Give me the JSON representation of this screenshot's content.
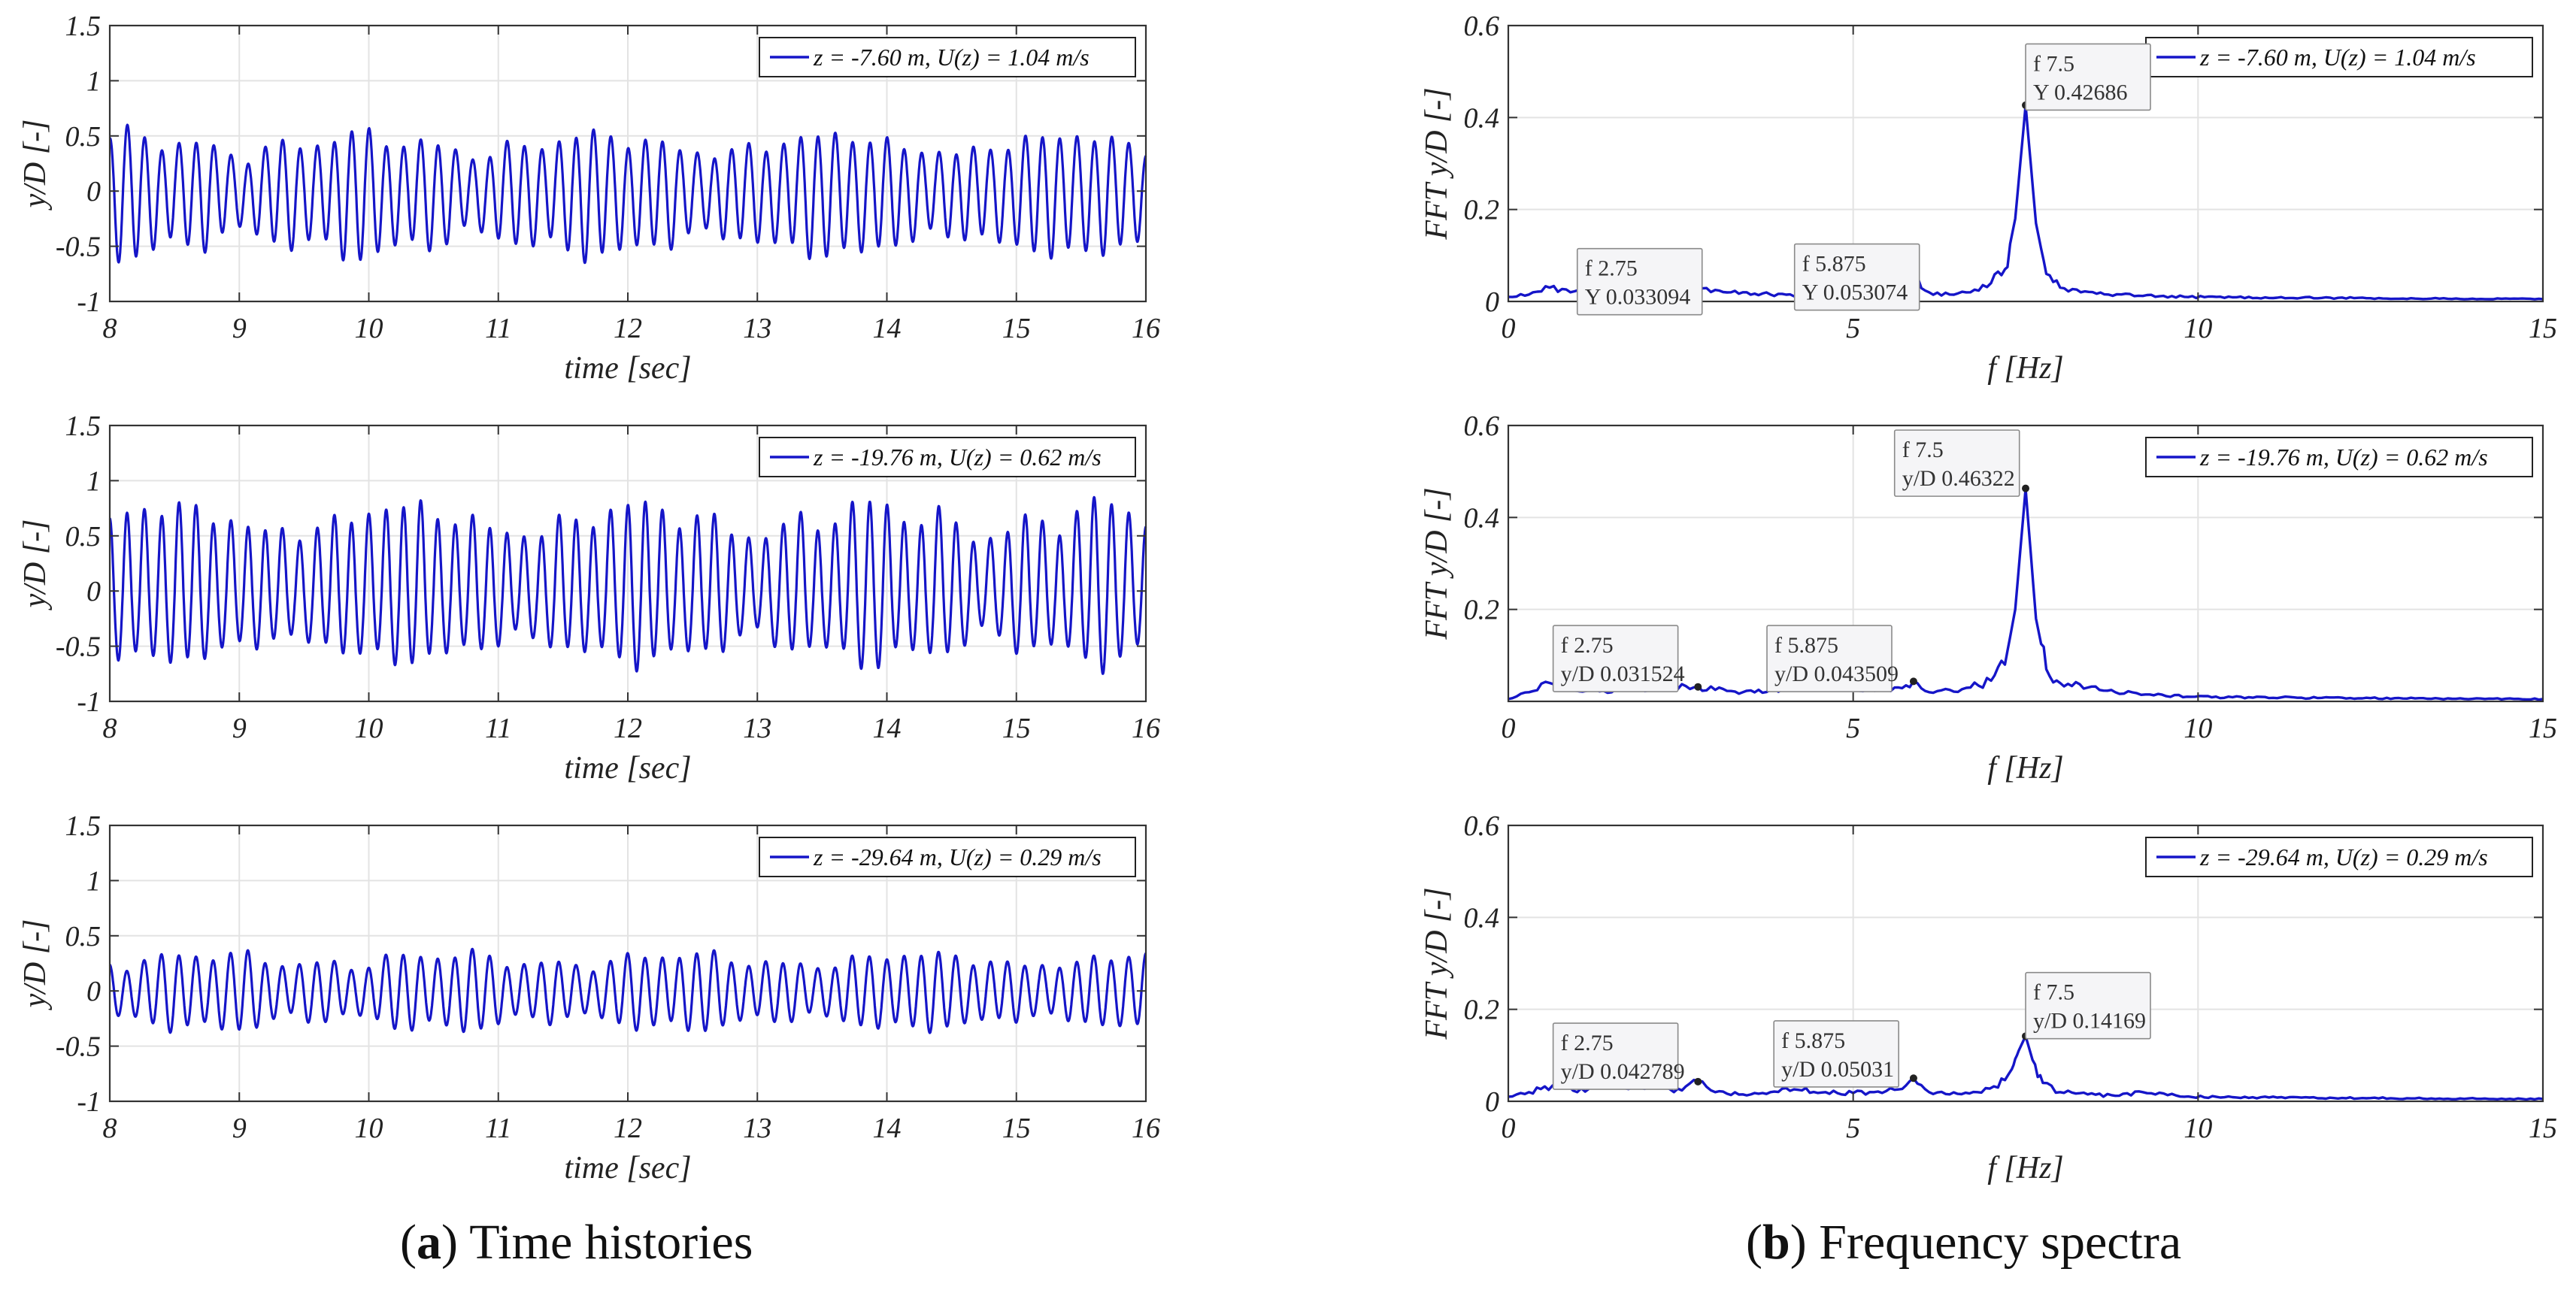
{
  "style": {
    "line_color": "#1515c8",
    "grid_color": "#e3e3e3",
    "axis_color": "#333333",
    "text_color": "#222222",
    "tip_border": "#8a8a8a",
    "tip_fill": "#f5f5f7"
  },
  "captions": {
    "left": {
      "letter": "a",
      "text": "Time histories"
    },
    "right": {
      "letter": "b",
      "text": "Frequency spectra"
    }
  },
  "chart_data": [
    {
      "id": "time-top",
      "type": "line",
      "column": 0,
      "row": 0,
      "xlabel": "time [sec]",
      "ylabel": "y/D [-]",
      "xlim": [
        8,
        16
      ],
      "ylim": [
        -1,
        1.5
      ],
      "xticks": [
        "8",
        "9",
        "10",
        "11",
        "12",
        "13",
        "14",
        "15",
        "16"
      ],
      "yticks": [
        "-1",
        "-0.5",
        "0",
        "0.5",
        "1",
        "1.5"
      ],
      "xtick_values": [
        8,
        9,
        10,
        11,
        12,
        13,
        14,
        15,
        16
      ],
      "ytick_values": [
        -1,
        -0.5,
        0,
        0.5,
        1,
        1.5
      ],
      "legend": "z = -7.60 m, U(z) = 1.04 m/s",
      "series": [
        {
          "name": "z = -7.60 m, U(z) = 1.04 m/s",
          "kind": "oscillation",
          "frequency_hz": 7.5,
          "mean": 0,
          "peak_amplitude": 0.6,
          "trough_min": -0.65
        }
      ]
    },
    {
      "id": "time-mid",
      "type": "line",
      "column": 0,
      "row": 1,
      "xlabel": "time [sec]",
      "ylabel": "y/D [-]",
      "xlim": [
        8,
        16
      ],
      "ylim": [
        -1,
        1.5
      ],
      "xticks": [
        "8",
        "9",
        "10",
        "11",
        "12",
        "13",
        "14",
        "15",
        "16"
      ],
      "yticks": [
        "-1",
        "-0.5",
        "0",
        "0.5",
        "1",
        "1.5"
      ],
      "xtick_values": [
        8,
        9,
        10,
        11,
        12,
        13,
        14,
        15,
        16
      ],
      "ytick_values": [
        -1,
        -0.5,
        0,
        0.5,
        1,
        1.5
      ],
      "legend": "z = -19.76 m, U(z) = 0.62 m/s",
      "series": [
        {
          "name": "z = -19.76 m, U(z) = 0.62 m/s",
          "kind": "oscillation",
          "frequency_hz": 7.5,
          "mean": 0,
          "peak_amplitude": 0.65,
          "max": 0.85,
          "trough_min": -0.75
        }
      ]
    },
    {
      "id": "time-bot",
      "type": "line",
      "column": 0,
      "row": 2,
      "xlabel": "time [sec]",
      "ylabel": "y/D [-]",
      "xlim": [
        8,
        16
      ],
      "ylim": [
        -1,
        1.5
      ],
      "xticks": [
        "8",
        "9",
        "10",
        "11",
        "12",
        "13",
        "14",
        "15",
        "16"
      ],
      "yticks": [
        "-1",
        "-0.5",
        "0",
        "0.5",
        "1",
        "1.5"
      ],
      "xtick_values": [
        8,
        9,
        10,
        11,
        12,
        13,
        14,
        15,
        16
      ],
      "ytick_values": [
        -1,
        -0.5,
        0,
        0.5,
        1,
        1.5
      ],
      "legend": "z = -29.64 m, U(z) = 0.29 m/s",
      "series": [
        {
          "name": "z = -29.64 m, U(z) = 0.29 m/s",
          "kind": "oscillation",
          "frequency_hz": 7.5,
          "mean": 0,
          "peak_amplitude": 0.2,
          "max": 0.38,
          "trough_min": -0.38
        }
      ]
    },
    {
      "id": "fft-top",
      "type": "line",
      "column": 1,
      "row": 0,
      "xlabel": "f [Hz]",
      "ylabel": "FFT y/D [-]",
      "xlim": [
        0,
        15
      ],
      "ylim": [
        0,
        0.6
      ],
      "xticks": [
        "0",
        "5",
        "10",
        "15"
      ],
      "yticks": [
        "0",
        "0.2",
        "0.4",
        "0.6"
      ],
      "xtick_values": [
        0,
        5,
        10,
        15
      ],
      "ytick_values": [
        0,
        0.2,
        0.4,
        0.6
      ],
      "legend": "z = -7.60 m, U(z) = 1.04 m/s",
      "series": [
        {
          "name": "z = -7.60 m, U(z) = 1.04 m/s",
          "kind": "spectrum",
          "x": [
            0,
            0.3,
            0.6,
            0.9,
            1.2,
            1.5,
            1.8,
            2.1,
            2.4,
            2.75,
            3.0,
            3.4,
            3.8,
            4.2,
            4.6,
            5.0,
            5.3,
            5.6,
            5.875,
            6.1,
            6.4,
            6.7,
            7.0,
            7.2,
            7.35,
            7.5,
            7.65,
            7.8,
            8.0,
            8.3,
            8.7,
            9.2,
            9.8,
            10.5,
            11.5,
            12.5,
            13.5,
            15
          ],
          "y": [
            0.01,
            0.015,
            0.03,
            0.02,
            0.025,
            0.015,
            0.035,
            0.03,
            0.02,
            0.033,
            0.025,
            0.02,
            0.015,
            0.012,
            0.015,
            0.018,
            0.022,
            0.03,
            0.053,
            0.02,
            0.015,
            0.02,
            0.04,
            0.07,
            0.18,
            0.427,
            0.17,
            0.06,
            0.03,
            0.02,
            0.015,
            0.012,
            0.01,
            0.009,
            0.008,
            0.007,
            0.006,
            0.005
          ]
        }
      ],
      "annotations": [
        {
          "x": 2.75,
          "y": 0.033094,
          "line1": "f 2.75",
          "line2": "Y 0.033094",
          "tip_x": 1.0,
          "tip_y": 0.115
        },
        {
          "x": 5.875,
          "y": 0.053074,
          "line1": "f 5.875",
          "line2": "Y 0.053074",
          "tip_x": 4.15,
          "tip_y": 0.125
        },
        {
          "x": 7.5,
          "y": 0.42686,
          "line1": "f 7.5",
          "line2": "Y 0.42686",
          "tip_x": 7.5,
          "tip_y": 0.56
        }
      ]
    },
    {
      "id": "fft-mid",
      "type": "line",
      "column": 1,
      "row": 1,
      "xlabel": "f [Hz]",
      "ylabel": "FFT y/D [-]",
      "xlim": [
        0,
        15
      ],
      "ylim": [
        0,
        0.6
      ],
      "xticks": [
        "0",
        "5",
        "10",
        "15"
      ],
      "yticks": [
        "0.2",
        "0.4",
        "0.6"
      ],
      "xtick_values": [
        0,
        5,
        10,
        15
      ],
      "ytick_values": [
        0.2,
        0.4,
        0.6
      ],
      "legend": "z = -19.76 m, U(z) = 0.62 m/s",
      "series": [
        {
          "name": "z = -19.76 m, U(z) = 0.62 m/s",
          "kind": "spectrum",
          "x": [
            0,
            0.3,
            0.6,
            0.9,
            1.2,
            1.5,
            1.8,
            2.1,
            2.4,
            2.75,
            3.0,
            3.4,
            3.8,
            4.2,
            4.5,
            4.8,
            5.2,
            5.6,
            5.875,
            6.1,
            6.4,
            6.7,
            7.0,
            7.2,
            7.35,
            7.5,
            7.65,
            7.8,
            8.0,
            8.4,
            8.8,
            9.3,
            9.9,
            10.5,
            11.5,
            12.5,
            13.5,
            15
          ],
          "y": [
            0.005,
            0.02,
            0.04,
            0.025,
            0.03,
            0.02,
            0.03,
            0.025,
            0.03,
            0.032,
            0.025,
            0.02,
            0.025,
            0.035,
            0.05,
            0.03,
            0.025,
            0.03,
            0.044,
            0.02,
            0.025,
            0.03,
            0.045,
            0.08,
            0.2,
            0.463,
            0.18,
            0.07,
            0.04,
            0.03,
            0.02,
            0.015,
            0.01,
            0.009,
            0.008,
            0.007,
            0.006,
            0.005
          ]
        }
      ],
      "annotations": [
        {
          "x": 2.75,
          "y": 0.031524,
          "line1": "f 2.75",
          "line2": "y/D 0.031524",
          "tip_x": 0.65,
          "tip_y": 0.165
        },
        {
          "x": 5.875,
          "y": 0.043509,
          "line1": "f 5.875",
          "line2": "y/D 0.043509",
          "tip_x": 3.75,
          "tip_y": 0.165
        },
        {
          "x": 7.5,
          "y": 0.46322,
          "line1": "f 7.5",
          "line2": "y/D 0.46322",
          "tip_x": 5.6,
          "tip_y": 0.59
        }
      ]
    },
    {
      "id": "fft-bot",
      "type": "line",
      "column": 1,
      "row": 2,
      "xlabel": "f [Hz]",
      "ylabel": "FFT y/D [-]",
      "xlim": [
        0,
        15
      ],
      "ylim": [
        0,
        0.6
      ],
      "xticks": [
        "0",
        "5",
        "10",
        "15"
      ],
      "yticks": [
        "0",
        "0.2",
        "0.4",
        "0.6"
      ],
      "xtick_values": [
        0,
        5,
        10,
        15
      ],
      "ytick_values": [
        0,
        0.2,
        0.4,
        0.6
      ],
      "legend": "z = -29.64 m, U(z) = 0.29 m/s",
      "series": [
        {
          "name": "z = -29.64 m, U(z) = 0.29 m/s",
          "kind": "spectrum",
          "x": [
            0,
            0.3,
            0.7,
            1.0,
            1.4,
            1.8,
            2.1,
            2.4,
            2.75,
            3.0,
            3.4,
            3.8,
            4.2,
            4.6,
            5.0,
            5.3,
            5.6,
            5.875,
            6.1,
            6.4,
            6.8,
            7.1,
            7.3,
            7.4,
            7.5,
            7.6,
            7.75,
            8.0,
            8.4,
            8.8,
            9.2,
            9.8,
            10.5,
            11.5,
            12.5,
            13.5,
            15
          ],
          "y": [
            0.01,
            0.02,
            0.035,
            0.02,
            0.04,
            0.03,
            0.035,
            0.02,
            0.043,
            0.02,
            0.015,
            0.02,
            0.025,
            0.02,
            0.018,
            0.02,
            0.025,
            0.05,
            0.02,
            0.015,
            0.02,
            0.03,
            0.07,
            0.11,
            0.142,
            0.09,
            0.04,
            0.02,
            0.015,
            0.012,
            0.02,
            0.01,
            0.009,
            0.008,
            0.007,
            0.006,
            0.005
          ]
        }
      ],
      "annotations": [
        {
          "x": 2.75,
          "y": 0.042789,
          "line1": "f 2.75",
          "line2": "y/D 0.042789",
          "tip_x": 0.65,
          "tip_y": 0.17
        },
        {
          "x": 5.875,
          "y": 0.05031,
          "line1": "f 5.875",
          "line2": "y/D 0.05031",
          "tip_x": 3.85,
          "tip_y": 0.175
        },
        {
          "x": 7.5,
          "y": 0.14169,
          "line1": "f 7.5",
          "line2": "y/D 0.14169",
          "tip_x": 7.5,
          "tip_y": 0.28
        }
      ]
    }
  ]
}
